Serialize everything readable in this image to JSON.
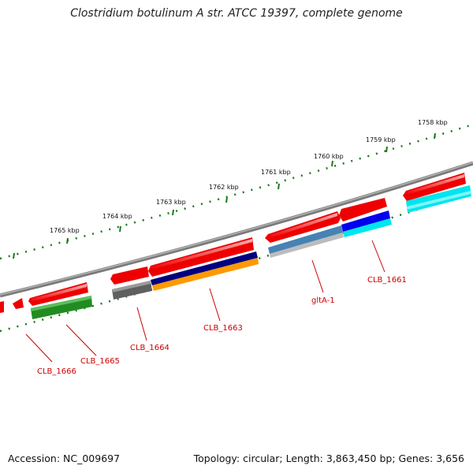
{
  "title": "Clostridium botulinum A str. ATCC 19397, complete genome",
  "footer": {
    "accession": "Accession: NC_009697",
    "topology": "Topology: circular; Length: 3,863,450 bp; Genes: 3,656"
  },
  "ticks": [
    "1758 kbp",
    "1759 kbp",
    "1760 kbp",
    "1761 kbp",
    "1762 kbp",
    "1763 kbp",
    "1764 kbp",
    "1765 kbp"
  ],
  "genes": [
    "CLB_1661",
    "gltA-1",
    "CLB_1663",
    "CLB_1664",
    "CLB_1665",
    "CLB_1666"
  ],
  "colors": {
    "backbone": "#7f7f7f",
    "tick": "#1a7a1a",
    "feature_red": "#ee0000",
    "feature_green": "#228b22",
    "feature_navy": "#000080",
    "feature_orange": "#ff9900",
    "feature_steelblue": "#4682b4",
    "feature_blue": "#0000ee",
    "feature_cyan": "#00e5ee",
    "feature_gray": "#666666",
    "label": "#cc0000"
  }
}
